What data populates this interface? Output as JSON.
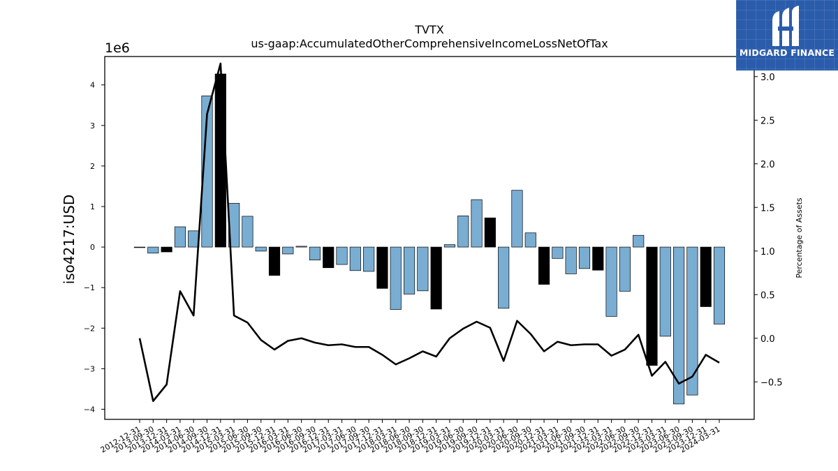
{
  "chart_data": {
    "type": "bar",
    "title": "TVTX",
    "subtitle": "us-gaap:AccumulatedOtherComprehensiveIncomeLossNetOfTax",
    "ylabel": "iso4217:USD",
    "y_offset_label": "1e6",
    "y2label": "Percentage of Assets",
    "ylim": [
      -4.25,
      4.7
    ],
    "y2lim": [
      -0.93,
      3.23
    ],
    "yticks": [
      "4",
      "3",
      "2",
      "1",
      "0",
      "−1",
      "−2",
      "−3",
      "−4"
    ],
    "y2ticks": [
      "3.0",
      "2.5",
      "2.0",
      "1.5",
      "1.0",
      "0.5",
      "0.0",
      "−0.5"
    ],
    "grid": false,
    "categories": [
      "2012-12-31",
      "2013-09-30",
      "2013-12-31",
      "2014-03-31",
      "2014-06-30",
      "2014-09-30",
      "2014-12-31",
      "2015-03-31",
      "2015-06-30",
      "2015-09-30",
      "2015-12-31",
      "2016-03-31",
      "2016-06-30",
      "2016-09-30",
      "2016-12-31",
      "2017-03-31",
      "2017-06-30",
      "2017-09-30",
      "2017-12-31",
      "2018-03-31",
      "2018-06-30",
      "2018-09-30",
      "2018-12-31",
      "2019-03-31",
      "2019-06-30",
      "2019-09-30",
      "2019-12-31",
      "2020-03-31",
      "2020-06-30",
      "2020-09-30",
      "2020-12-31",
      "2021-03-31",
      "2021-06-30",
      "2021-09-30",
      "2021-12-31",
      "2022-03-31",
      "2022-06-30",
      "2022-09-30",
      "2022-12-31",
      "2023-03-31",
      "2023-06-30",
      "2023-09-30",
      "2023-12-31",
      "2024-03-31"
    ],
    "series": [
      {
        "type": "bar",
        "values": [
          0.0,
          -0.15,
          -0.12,
          0.5,
          0.4,
          3.73,
          4.27,
          1.08,
          0.76,
          -0.1,
          -0.7,
          -0.17,
          0.02,
          -0.32,
          -0.51,
          -0.43,
          -0.58,
          -0.6,
          -1.02,
          -1.54,
          -1.16,
          -1.08,
          -1.53,
          0.06,
          0.77,
          1.17,
          0.72,
          -1.51,
          1.4,
          0.35,
          -0.92,
          -0.28,
          -0.66,
          -0.53,
          -0.57,
          -1.71,
          -1.09,
          0.29,
          -2.92,
          -2.2,
          -3.87,
          -3.65,
          -1.47,
          -1.9
        ],
        "highlight": [
          false,
          false,
          true,
          false,
          false,
          false,
          true,
          false,
          false,
          false,
          true,
          false,
          false,
          false,
          true,
          false,
          false,
          false,
          true,
          false,
          false,
          false,
          true,
          false,
          false,
          false,
          true,
          false,
          false,
          false,
          true,
          false,
          false,
          false,
          true,
          false,
          false,
          false,
          true,
          false,
          false,
          false,
          true,
          false
        ]
      },
      {
        "type": "line",
        "axis": "right",
        "values": [
          0.0,
          -0.72,
          -0.53,
          0.54,
          0.26,
          2.57,
          3.15,
          0.26,
          0.18,
          -0.02,
          -0.13,
          -0.03,
          0.0,
          -0.05,
          -0.08,
          -0.07,
          -0.1,
          -0.1,
          -0.19,
          -0.3,
          -0.23,
          -0.15,
          -0.21,
          0.0,
          0.11,
          0.19,
          0.12,
          -0.26,
          0.2,
          0.05,
          -0.15,
          -0.04,
          -0.08,
          -0.07,
          -0.07,
          -0.2,
          -0.13,
          0.04,
          -0.43,
          -0.27,
          -0.52,
          -0.44,
          -0.19,
          -0.28
        ]
      }
    ],
    "colors": {
      "bar": "#7aadd2",
      "bar_highlight": "#000000",
      "line": "#000000",
      "edge": "#000000"
    }
  },
  "logo": {
    "text": "MIDGARD FINANCE"
  }
}
